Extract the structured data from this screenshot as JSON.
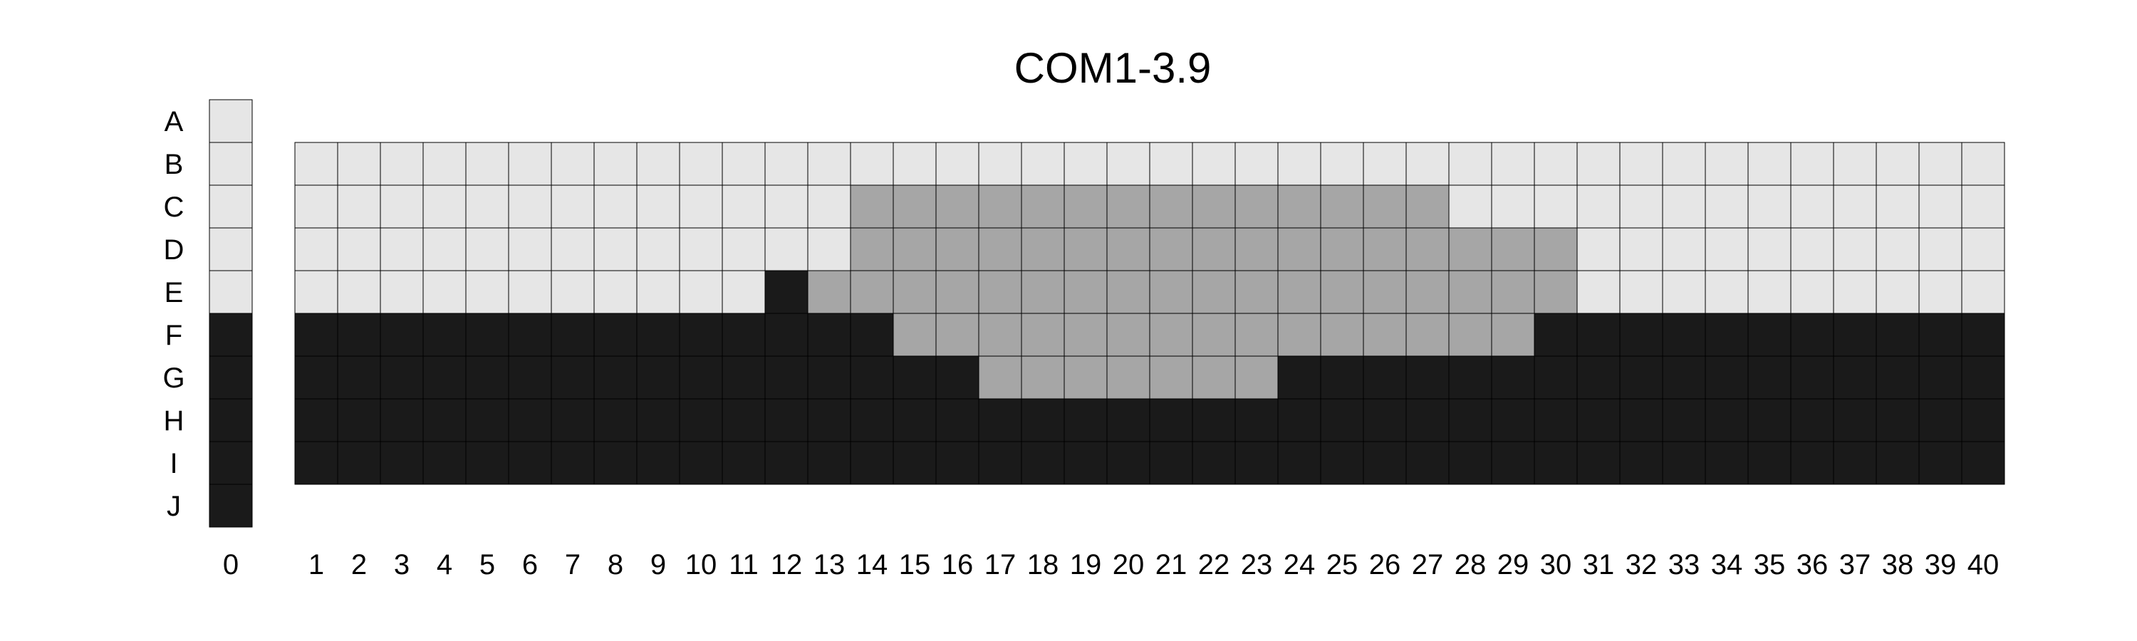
{
  "chart_data": {
    "type": "heatmap",
    "title": "COM1-3.9",
    "rows": [
      "A",
      "B",
      "C",
      "D",
      "E",
      "F",
      "G",
      "H",
      "I",
      "J"
    ],
    "reference_column": {
      "label": "0",
      "rows": [
        "A",
        "B",
        "C",
        "D",
        "E",
        "F",
        "G",
        "H",
        "I",
        "J"
      ],
      "values": [
        0,
        0,
        0,
        0,
        0,
        2,
        2,
        2,
        2,
        2
      ]
    },
    "columns": [
      "1",
      "2",
      "3",
      "4",
      "5",
      "6",
      "7",
      "8",
      "9",
      "10",
      "11",
      "12",
      "13",
      "14",
      "15",
      "16",
      "17",
      "18",
      "19",
      "20",
      "21",
      "22",
      "23",
      "24",
      "25",
      "26",
      "27",
      "28",
      "29",
      "30",
      "31",
      "32",
      "33",
      "34",
      "35",
      "36",
      "37",
      "38",
      "39",
      "40"
    ],
    "grid_rows": [
      "B",
      "C",
      "D",
      "E",
      "F",
      "G",
      "H",
      "I"
    ],
    "grid": [
      [
        0,
        0,
        0,
        0,
        0,
        0,
        0,
        0,
        0,
        0,
        0,
        0,
        0,
        0,
        0,
        0,
        0,
        0,
        0,
        0,
        0,
        0,
        0,
        0,
        0,
        0,
        0,
        0,
        0,
        0,
        0,
        0,
        0,
        0,
        0,
        0,
        0,
        0,
        0,
        0
      ],
      [
        0,
        0,
        0,
        0,
        0,
        0,
        0,
        0,
        0,
        0,
        0,
        0,
        0,
        1,
        1,
        1,
        1,
        1,
        1,
        1,
        1,
        1,
        1,
        1,
        1,
        1,
        1,
        0,
        0,
        0,
        0,
        0,
        0,
        0,
        0,
        0,
        0,
        0,
        0,
        0
      ],
      [
        0,
        0,
        0,
        0,
        0,
        0,
        0,
        0,
        0,
        0,
        0,
        0,
        0,
        1,
        1,
        1,
        1,
        1,
        1,
        1,
        1,
        1,
        1,
        1,
        1,
        1,
        1,
        1,
        1,
        1,
        0,
        0,
        0,
        0,
        0,
        0,
        0,
        0,
        0,
        0
      ],
      [
        0,
        0,
        0,
        0,
        0,
        0,
        0,
        0,
        0,
        0,
        0,
        2,
        1,
        1,
        1,
        1,
        1,
        1,
        1,
        1,
        1,
        1,
        1,
        1,
        1,
        1,
        1,
        1,
        1,
        1,
        0,
        0,
        0,
        0,
        0,
        0,
        0,
        0,
        0,
        0
      ],
      [
        2,
        2,
        2,
        2,
        2,
        2,
        2,
        2,
        2,
        2,
        2,
        2,
        2,
        2,
        1,
        1,
        1,
        1,
        1,
        1,
        1,
        1,
        1,
        1,
        1,
        1,
        1,
        1,
        1,
        2,
        2,
        2,
        2,
        2,
        2,
        2,
        2,
        2,
        2,
        2
      ],
      [
        2,
        2,
        2,
        2,
        2,
        2,
        2,
        2,
        2,
        2,
        2,
        2,
        2,
        2,
        2,
        2,
        1,
        1,
        1,
        1,
        1,
        1,
        1,
        2,
        2,
        2,
        2,
        2,
        2,
        2,
        2,
        2,
        2,
        2,
        2,
        2,
        2,
        2,
        2,
        2
      ],
      [
        2,
        2,
        2,
        2,
        2,
        2,
        2,
        2,
        2,
        2,
        2,
        2,
        2,
        2,
        2,
        2,
        2,
        2,
        2,
        2,
        2,
        2,
        2,
        2,
        2,
        2,
        2,
        2,
        2,
        2,
        2,
        2,
        2,
        2,
        2,
        2,
        2,
        2,
        2,
        2
      ],
      [
        2,
        2,
        2,
        2,
        2,
        2,
        2,
        2,
        2,
        2,
        2,
        2,
        2,
        2,
        2,
        2,
        2,
        2,
        2,
        2,
        2,
        2,
        2,
        2,
        2,
        2,
        2,
        2,
        2,
        2,
        2,
        2,
        2,
        2,
        2,
        2,
        2,
        2,
        2,
        2
      ]
    ],
    "colors": {
      "0": "#e6e6e6",
      "1": "#a6a6a6",
      "2": "#1a1a1a"
    },
    "grid_on": true,
    "legend": "none"
  }
}
